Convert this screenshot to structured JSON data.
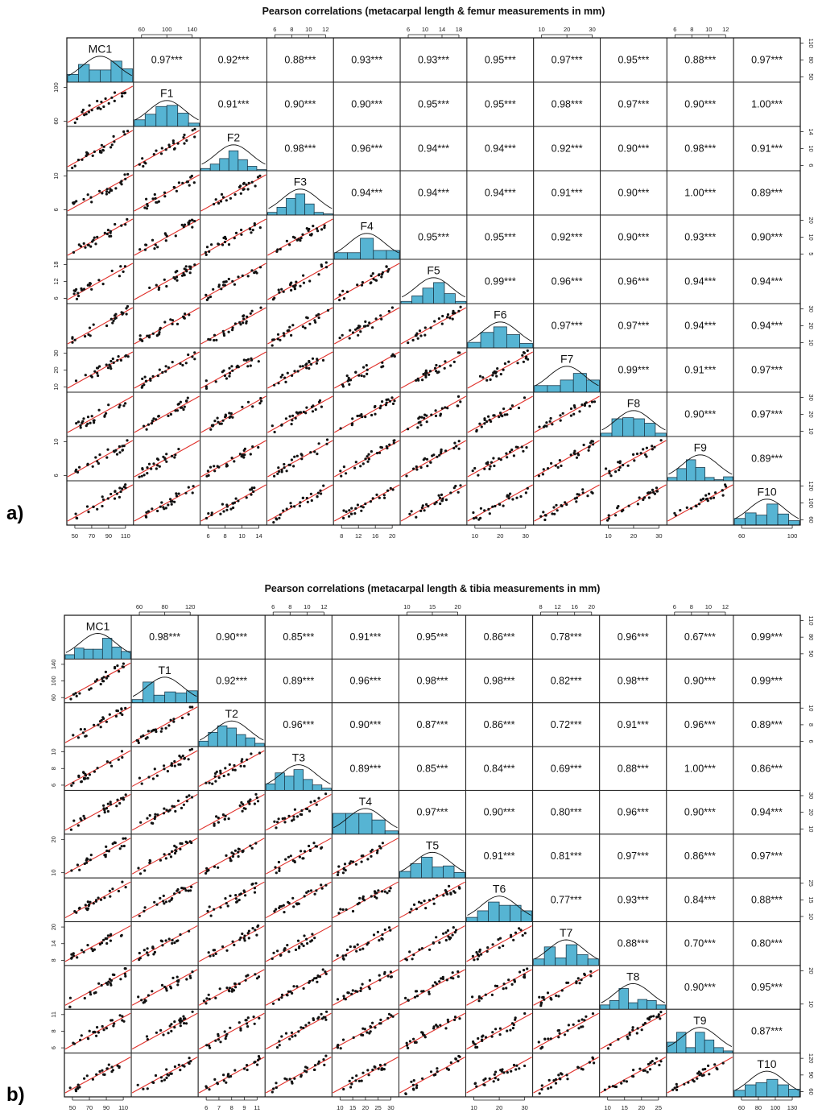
{
  "chart_data": [
    {
      "panel_label": "a)",
      "type": "scatter",
      "title": "Pearson correlations (metacarpal length & femur measurements in mm)",
      "variables": [
        "MC1",
        "F1",
        "F2",
        "F3",
        "F4",
        "F5",
        "F6",
        "F7",
        "F8",
        "F9",
        "F10"
      ],
      "correlations": [
        [
          "0.97***",
          "0.92***",
          "0.88***",
          "0.93***",
          "0.93***",
          "0.95***",
          "0.97***",
          "0.95***",
          "0.88***",
          "0.97***"
        ],
        [
          "0.91***",
          "0.90***",
          "0.90***",
          "0.95***",
          "0.95***",
          "0.98***",
          "0.97***",
          "0.90***",
          "1.00***"
        ],
        [
          "0.98***",
          "0.96***",
          "0.94***",
          "0.94***",
          "0.92***",
          "0.90***",
          "0.98***",
          "0.91***"
        ],
        [
          "0.94***",
          "0.94***",
          "0.94***",
          "0.91***",
          "0.90***",
          "1.00***",
          "0.89***"
        ],
        [
          "0.95***",
          "0.95***",
          "0.92***",
          "0.90***",
          "0.93***",
          "0.90***"
        ],
        [
          "0.99***",
          "0.96***",
          "0.96***",
          "0.94***",
          "0.94***"
        ],
        [
          "0.97***",
          "0.97***",
          "0.94***",
          "0.94***"
        ],
        [
          "0.99***",
          "0.91***",
          "0.97***"
        ],
        [
          "0.90***",
          "0.97***"
        ],
        [
          "0.89***"
        ]
      ],
      "top_axis": [
        {
          "col": 1,
          "ticks": [
            "60",
            "100",
            "140"
          ]
        },
        {
          "col": 3,
          "ticks": [
            "6",
            "8",
            "10",
            "12"
          ]
        },
        {
          "col": 5,
          "ticks": [
            "6",
            "10",
            "14",
            "18"
          ]
        },
        {
          "col": 7,
          "ticks": [
            "10",
            "20",
            "30"
          ]
        },
        {
          "col": 9,
          "ticks": [
            "6",
            "8",
            "10",
            "12"
          ]
        }
      ],
      "bottom_axis": [
        {
          "col": 0,
          "ticks": [
            "50",
            "70",
            "90",
            "110"
          ]
        },
        {
          "col": 2,
          "ticks": [
            "6",
            "8",
            "10",
            "14"
          ]
        },
        {
          "col": 4,
          "ticks": [
            "8",
            "12",
            "16",
            "20"
          ]
        },
        {
          "col": 6,
          "ticks": [
            "10",
            "20",
            "30"
          ]
        },
        {
          "col": 8,
          "ticks": [
            "10",
            "20",
            "30"
          ]
        },
        {
          "col": 10,
          "ticks": [
            "60",
            "100"
          ]
        }
      ],
      "left_axis": [
        {
          "row": 1,
          "ticks": [
            "60",
            "100"
          ]
        },
        {
          "row": 3,
          "ticks": [
            "6",
            "10"
          ]
        },
        {
          "row": 5,
          "ticks": [
            "6",
            "12",
            "18"
          ]
        },
        {
          "row": 7,
          "ticks": [
            "10",
            "20",
            "30"
          ]
        },
        {
          "row": 9,
          "ticks": [
            "6",
            "10"
          ]
        }
      ],
      "right_axis": [
        {
          "row": 0,
          "ticks": [
            "50",
            "80",
            "110"
          ]
        },
        {
          "row": 2,
          "ticks": [
            "6",
            "10",
            "14"
          ]
        },
        {
          "row": 4,
          "ticks": [
            "5",
            "10",
            "20"
          ]
        },
        {
          "row": 6,
          "ticks": [
            "10",
            "20",
            "30"
          ]
        },
        {
          "row": 8,
          "ticks": [
            "10",
            "20",
            "30"
          ]
        },
        {
          "row": 10,
          "ticks": [
            "60",
            "100",
            "120"
          ]
        }
      ]
    },
    {
      "panel_label": "b)",
      "type": "scatter",
      "title": "Pearson correlations (metacarpal length & tibia measurements in mm)",
      "variables": [
        "MC1",
        "T1",
        "T2",
        "T3",
        "T4",
        "T5",
        "T6",
        "T7",
        "T8",
        "T9",
        "T10"
      ],
      "correlations": [
        [
          "0.98***",
          "0.90***",
          "0.85***",
          "0.91***",
          "0.95***",
          "0.86***",
          "0.78***",
          "0.96***",
          "0.67***",
          "0.99***"
        ],
        [
          "0.92***",
          "0.89***",
          "0.96***",
          "0.98***",
          "0.98***",
          "0.82***",
          "0.98***",
          "0.90***",
          "0.99***"
        ],
        [
          "0.96***",
          "0.90***",
          "0.87***",
          "0.86***",
          "0.72***",
          "0.91***",
          "0.96***",
          "0.89***"
        ],
        [
          "0.89***",
          "0.85***",
          "0.84***",
          "0.69***",
          "0.88***",
          "1.00***",
          "0.86***"
        ],
        [
          "0.97***",
          "0.90***",
          "0.80***",
          "0.96***",
          "0.90***",
          "0.94***"
        ],
        [
          "0.91***",
          "0.81***",
          "0.97***",
          "0.86***",
          "0.97***"
        ],
        [
          "0.77***",
          "0.93***",
          "0.84***",
          "0.88***"
        ],
        [
          "0.88***",
          "0.70***",
          "0.80***"
        ],
        [
          "0.90***",
          "0.95***"
        ],
        [
          "0.87***"
        ]
      ],
      "top_axis": [
        {
          "col": 1,
          "ticks": [
            "60",
            "80",
            "120"
          ]
        },
        {
          "col": 3,
          "ticks": [
            "6",
            "8",
            "10",
            "12"
          ]
        },
        {
          "col": 5,
          "ticks": [
            "10",
            "15",
            "20"
          ]
        },
        {
          "col": 7,
          "ticks": [
            "8",
            "12",
            "16",
            "20"
          ]
        },
        {
          "col": 9,
          "ticks": [
            "6",
            "8",
            "10",
            "12"
          ]
        }
      ],
      "bottom_axis": [
        {
          "col": 0,
          "ticks": [
            "50",
            "70",
            "90",
            "110"
          ]
        },
        {
          "col": 2,
          "ticks": [
            "6",
            "7",
            "8",
            "9",
            "11"
          ]
        },
        {
          "col": 4,
          "ticks": [
            "10",
            "15",
            "20",
            "25",
            "30"
          ]
        },
        {
          "col": 6,
          "ticks": [
            "10",
            "20",
            "30"
          ]
        },
        {
          "col": 8,
          "ticks": [
            "10",
            "15",
            "20",
            "25"
          ]
        },
        {
          "col": 10,
          "ticks": [
            "60",
            "80",
            "100",
            "130"
          ]
        }
      ],
      "left_axis": [
        {
          "row": 1,
          "ticks": [
            "60",
            "100",
            "140"
          ]
        },
        {
          "row": 3,
          "ticks": [
            "6",
            "8",
            "10"
          ]
        },
        {
          "row": 5,
          "ticks": [
            "10",
            "20"
          ]
        },
        {
          "row": 7,
          "ticks": [
            "8",
            "14",
            "20"
          ]
        },
        {
          "row": 9,
          "ticks": [
            "6",
            "8",
            "11"
          ]
        }
      ],
      "right_axis": [
        {
          "row": 0,
          "ticks": [
            "50",
            "80",
            "110"
          ]
        },
        {
          "row": 2,
          "ticks": [
            "6",
            "8",
            "10"
          ]
        },
        {
          "row": 4,
          "ticks": [
            "10",
            "20",
            "30"
          ]
        },
        {
          "row": 6,
          "ticks": [
            "10",
            "15",
            "25"
          ]
        },
        {
          "row": 8,
          "ticks": [
            "10",
            "20"
          ]
        },
        {
          "row": 10,
          "ticks": [
            "60",
            "90",
            "120"
          ]
        }
      ]
    }
  ]
}
